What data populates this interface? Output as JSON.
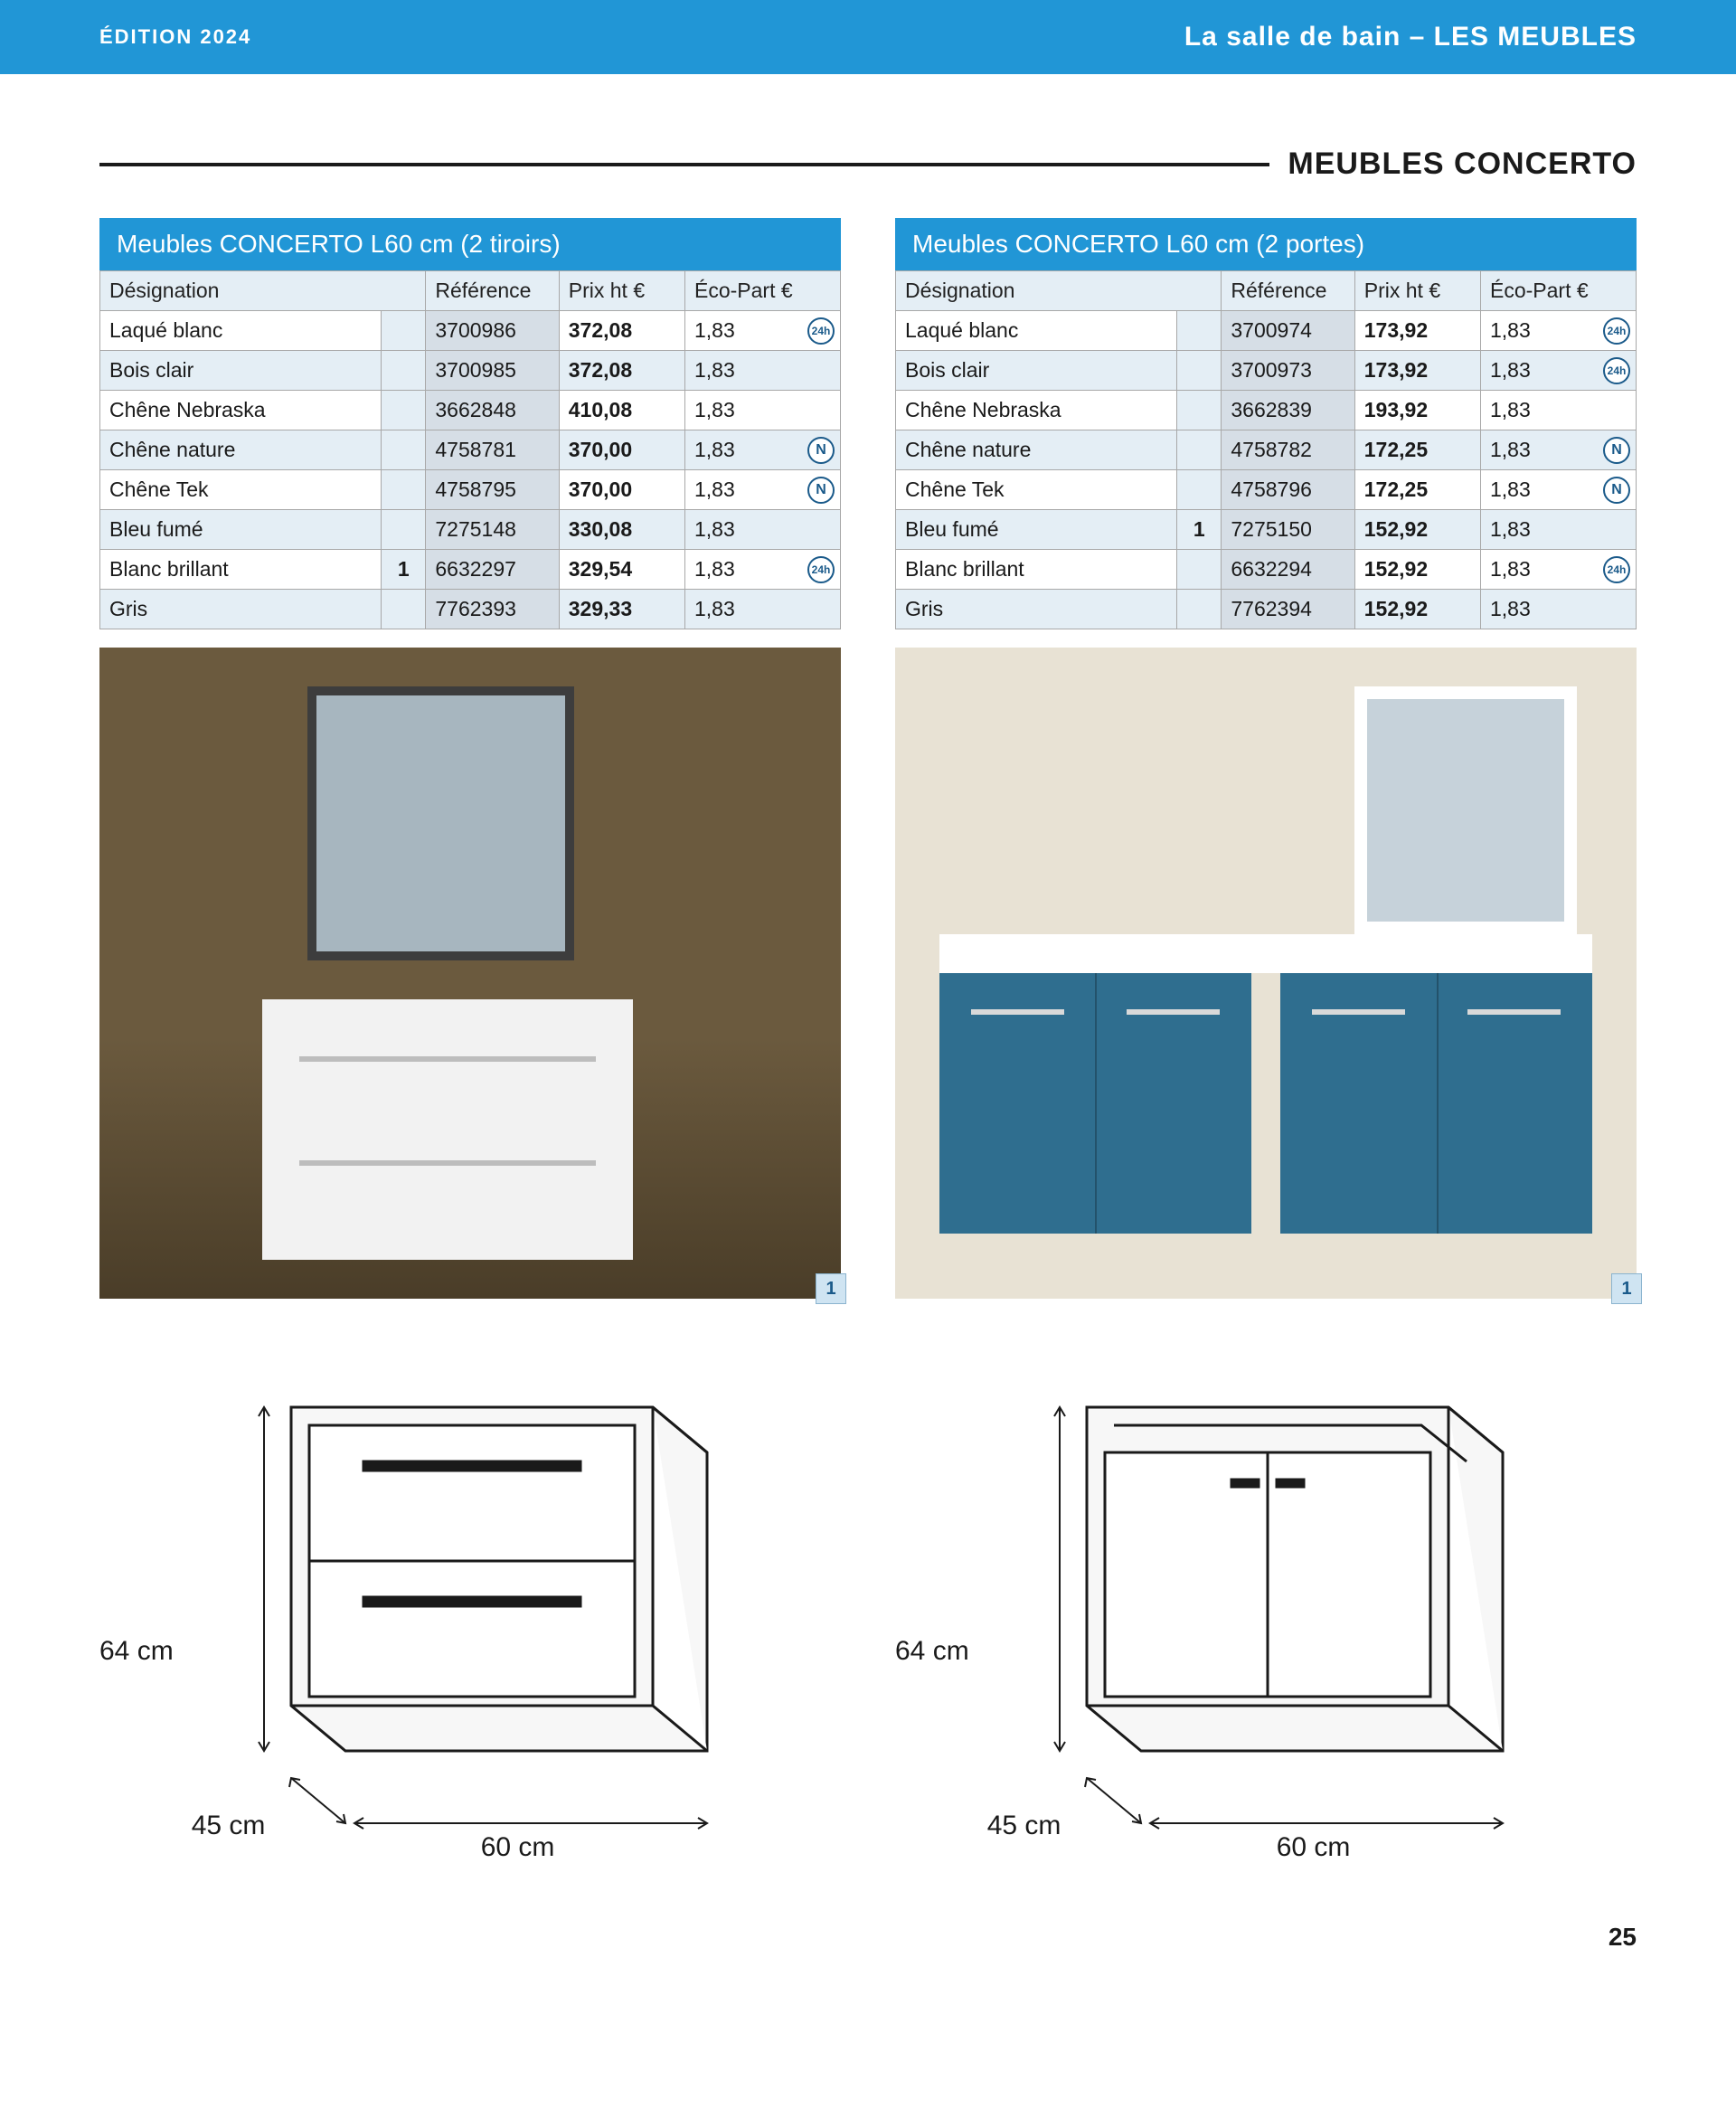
{
  "header": {
    "edition": "ÉDITION 2024",
    "breadcrumb": "La salle de bain – LES MEUBLES",
    "band_bg": "#2196d6",
    "band_fg": "#ffffff"
  },
  "section": {
    "title": "MEUBLES CONCERTO"
  },
  "tables": {
    "columns": [
      "Désignation",
      "Référence",
      "Prix ht €",
      "Éco-Part €"
    ],
    "left": {
      "title": "Meubles CONCERTO L60 cm (2 tiroirs)",
      "rows": [
        {
          "designation": "Laqué blanc",
          "note": "",
          "ref": "3700986",
          "price": "372,08",
          "eco": "1,83",
          "badge": "24h"
        },
        {
          "designation": "Bois clair",
          "note": "",
          "ref": "3700985",
          "price": "372,08",
          "eco": "1,83",
          "badge": ""
        },
        {
          "designation": "Chêne Nebraska",
          "note": "",
          "ref": "3662848",
          "price": "410,08",
          "eco": "1,83",
          "badge": ""
        },
        {
          "designation": "Chêne nature",
          "note": "",
          "ref": "4758781",
          "price": "370,00",
          "eco": "1,83",
          "badge": "N"
        },
        {
          "designation": "Chêne Tek",
          "note": "",
          "ref": "4758795",
          "price": "370,00",
          "eco": "1,83",
          "badge": "N"
        },
        {
          "designation": "Bleu fumé",
          "note": "",
          "ref": "7275148",
          "price": "330,08",
          "eco": "1,83",
          "badge": ""
        },
        {
          "designation": "Blanc brillant",
          "note": "1",
          "ref": "6632297",
          "price": "329,54",
          "eco": "1,83",
          "badge": "24h"
        },
        {
          "designation": "Gris",
          "note": "",
          "ref": "7762393",
          "price": "329,33",
          "eco": "1,83",
          "badge": ""
        }
      ]
    },
    "right": {
      "title": "Meubles CONCERTO L60 cm (2 portes)",
      "rows": [
        {
          "designation": "Laqué blanc",
          "note": "",
          "ref": "3700974",
          "price": "173,92",
          "eco": "1,83",
          "badge": "24h"
        },
        {
          "designation": "Bois clair",
          "note": "",
          "ref": "3700973",
          "price": "173,92",
          "eco": "1,83",
          "badge": "24h"
        },
        {
          "designation": "Chêne Nebraska",
          "note": "",
          "ref": "3662839",
          "price": "193,92",
          "eco": "1,83",
          "badge": ""
        },
        {
          "designation": "Chêne nature",
          "note": "",
          "ref": "4758782",
          "price": "172,25",
          "eco": "1,83",
          "badge": "N"
        },
        {
          "designation": "Chêne Tek",
          "note": "",
          "ref": "4758796",
          "price": "172,25",
          "eco": "1,83",
          "badge": "N"
        },
        {
          "designation": "Bleu fumé",
          "note": "1",
          "ref": "7275150",
          "price": "152,92",
          "eco": "1,83",
          "badge": ""
        },
        {
          "designation": "Blanc brillant",
          "note": "",
          "ref": "6632294",
          "price": "152,92",
          "eco": "1,83",
          "badge": "24h"
        },
        {
          "designation": "Gris",
          "note": "",
          "ref": "7762394",
          "price": "152,92",
          "eco": "1,83",
          "badge": ""
        }
      ]
    }
  },
  "photos": {
    "left_tag": "1",
    "right_tag": "1"
  },
  "diagrams": {
    "left": {
      "height": "64 cm",
      "depth": "45 cm",
      "width": "60 cm"
    },
    "right": {
      "height": "64 cm",
      "depth": "45 cm",
      "width": "60 cm"
    }
  },
  "page_number": "25",
  "colors": {
    "brand_blue": "#2196d6",
    "row_alt": "#e4eef5",
    "ref_cell": "#d6dee6",
    "border": "#a8a8a8",
    "badge_stroke": "#1a5a8a"
  }
}
